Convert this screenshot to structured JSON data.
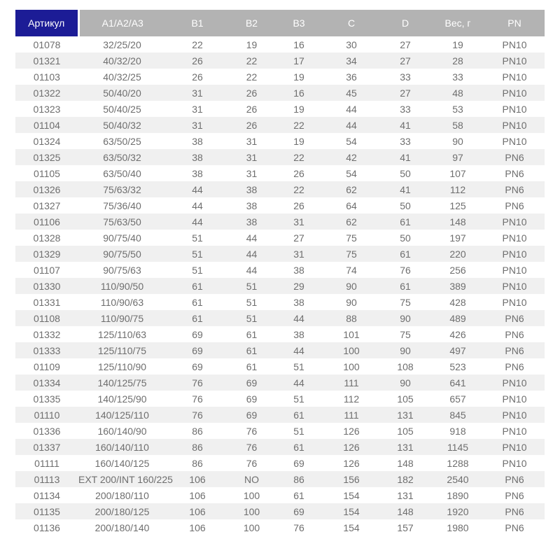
{
  "colors": {
    "accent_header_bg": "#1c1c96",
    "header_bg": "#b3b3b3",
    "header_text": "#ffffff",
    "row_bg": "#ffffff",
    "row_stripe_bg": "#f0f0f0",
    "cell_text": "#6e6e6e"
  },
  "chart_data": {
    "type": "table",
    "title": "",
    "columns": [
      "Артикул",
      "А1/А2/А3",
      "В1",
      "В2",
      "В3",
      "С",
      "D",
      "Вес, г",
      "PN"
    ],
    "column_keys": [
      "article",
      "a1-a2-a3",
      "b1",
      "b2",
      "b3",
      "c",
      "d",
      "weight-g",
      "pn"
    ],
    "rows": [
      [
        "01078",
        "32/25/20",
        "22",
        "19",
        "16",
        "30",
        "27",
        "19",
        "PN10"
      ],
      [
        "01321",
        "40/32/20",
        "26",
        "22",
        "17",
        "34",
        "27",
        "28",
        "PN10"
      ],
      [
        "01103",
        "40/32/25",
        "26",
        "22",
        "19",
        "36",
        "33",
        "33",
        "PN10"
      ],
      [
        "01322",
        "50/40/20",
        "31",
        "26",
        "16",
        "45",
        "27",
        "48",
        "PN10"
      ],
      [
        "01323",
        "50/40/25",
        "31",
        "26",
        "19",
        "44",
        "33",
        "53",
        "PN10"
      ],
      [
        "01104",
        "50/40/32",
        "31",
        "26",
        "22",
        "44",
        "41",
        "58",
        "PN10"
      ],
      [
        "01324",
        "63/50/25",
        "38",
        "31",
        "19",
        "54",
        "33",
        "90",
        "PN10"
      ],
      [
        "01325",
        "63/50/32",
        "38",
        "31",
        "22",
        "42",
        "41",
        "97",
        "PN6"
      ],
      [
        "01105",
        "63/50/40",
        "38",
        "31",
        "26",
        "54",
        "50",
        "107",
        "PN6"
      ],
      [
        "01326",
        "75/63/32",
        "44",
        "38",
        "22",
        "62",
        "41",
        "112",
        "PN6"
      ],
      [
        "01327",
        "75/36/40",
        "44",
        "38",
        "26",
        "64",
        "50",
        "125",
        "PN6"
      ],
      [
        "01106",
        "75/63/50",
        "44",
        "38",
        "31",
        "62",
        "61",
        "148",
        "PN10"
      ],
      [
        "01328",
        "90/75/40",
        "51",
        "44",
        "27",
        "75",
        "50",
        "197",
        "PN10"
      ],
      [
        "01329",
        "90/75/50",
        "51",
        "44",
        "31",
        "75",
        "61",
        "220",
        "PN10"
      ],
      [
        "01107",
        "90/75/63",
        "51",
        "44",
        "38",
        "74",
        "76",
        "256",
        "PN10"
      ],
      [
        "01330",
        "110/90/50",
        "61",
        "51",
        "29",
        "90",
        "61",
        "389",
        "PN10"
      ],
      [
        "01331",
        "110/90/63",
        "61",
        "51",
        "38",
        "90",
        "75",
        "428",
        "PN10"
      ],
      [
        "01108",
        "110/90/75",
        "61",
        "51",
        "44",
        "88",
        "90",
        "489",
        "PN6"
      ],
      [
        "01332",
        "125/110/63",
        "69",
        "61",
        "38",
        "101",
        "75",
        "426",
        "PN6"
      ],
      [
        "01333",
        "125/110/75",
        "69",
        "61",
        "44",
        "100",
        "90",
        "497",
        "PN6"
      ],
      [
        "01109",
        "125/110/90",
        "69",
        "61",
        "51",
        "100",
        "108",
        "523",
        "PN6"
      ],
      [
        "01334",
        "140/125/75",
        "76",
        "69",
        "44",
        "111",
        "90",
        "641",
        "PN10"
      ],
      [
        "01335",
        "140/125/90",
        "76",
        "69",
        "51",
        "112",
        "105",
        "657",
        "PN10"
      ],
      [
        "01110",
        "140/125/110",
        "76",
        "69",
        "61",
        "111",
        "131",
        "845",
        "PN10"
      ],
      [
        "01336",
        "160/140/90",
        "86",
        "76",
        "51",
        "126",
        "105",
        "918",
        "PN10"
      ],
      [
        "01337",
        "160/140/110",
        "86",
        "76",
        "61",
        "126",
        "131",
        "1145",
        "PN10"
      ],
      [
        "01111",
        "160/140/125",
        "86",
        "76",
        "69",
        "126",
        "148",
        "1288",
        "PN10"
      ],
      [
        "01113",
        "EXT 200/INT 160/225",
        "106",
        "NO",
        "86",
        "156",
        "182",
        "2540",
        "PN6"
      ],
      [
        "01134",
        "200/180/110",
        "106",
        "100",
        "61",
        "154",
        "131",
        "1890",
        "PN6"
      ],
      [
        "01135",
        "200/180/125",
        "106",
        "100",
        "69",
        "154",
        "148",
        "1920",
        "PN6"
      ],
      [
        "01136",
        "200/180/140",
        "106",
        "100",
        "76",
        "154",
        "157",
        "1980",
        "PN6"
      ]
    ]
  }
}
